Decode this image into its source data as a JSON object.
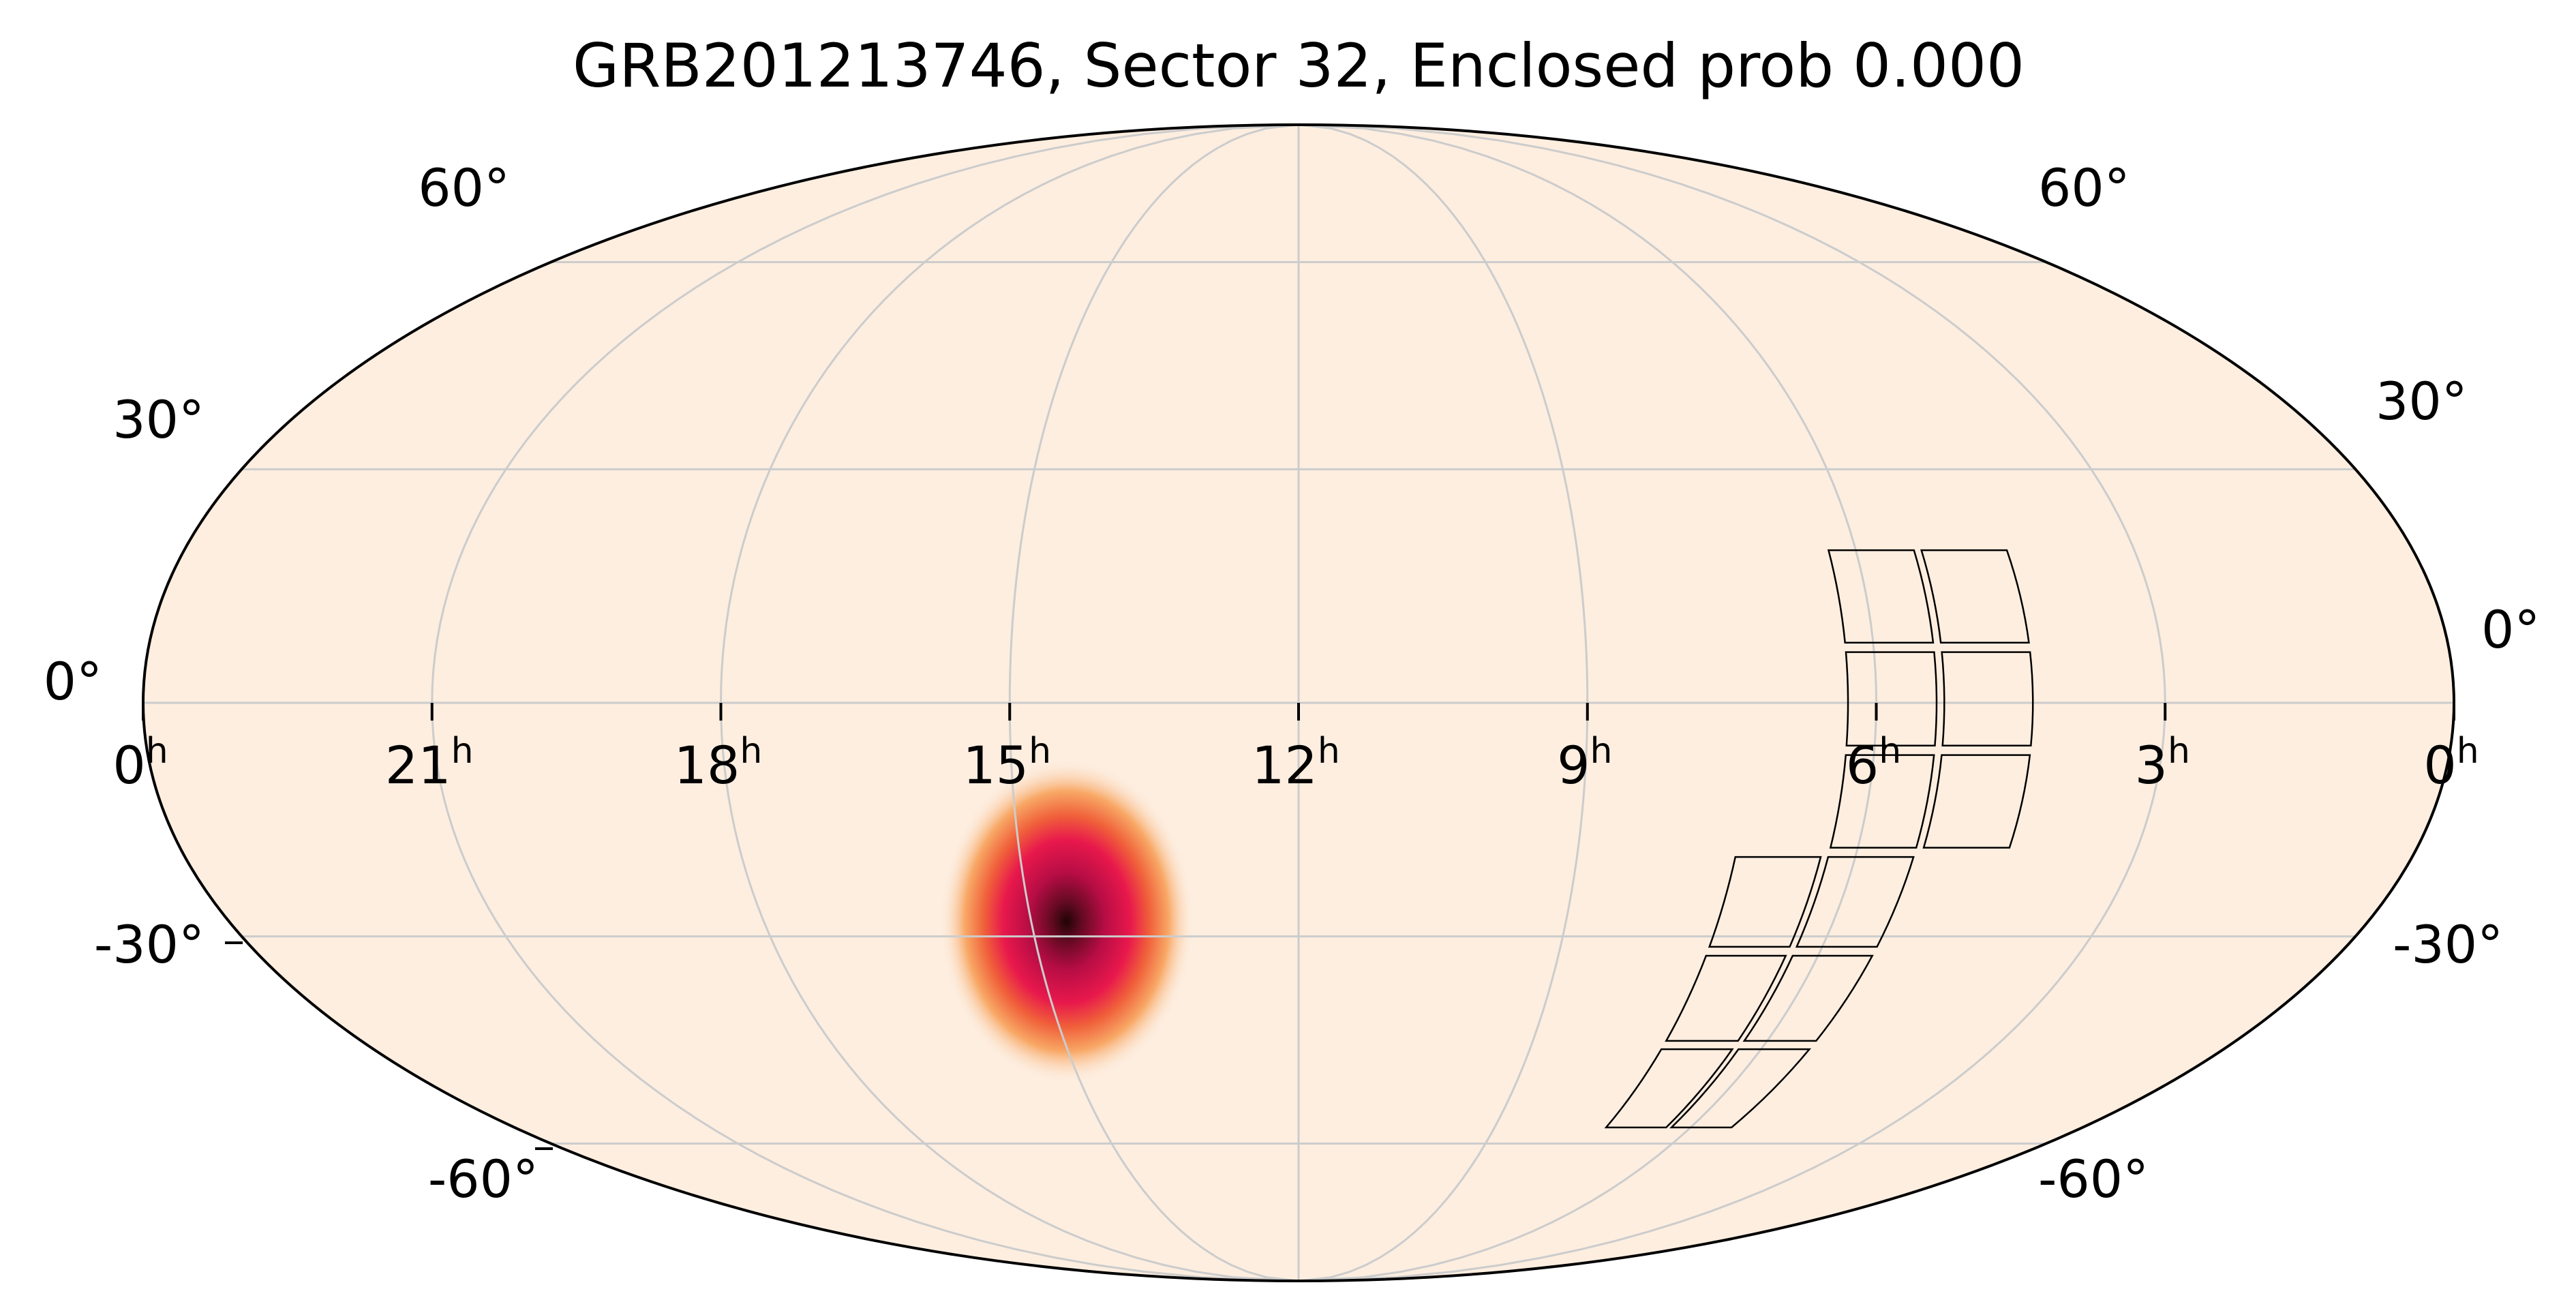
{
  "title": "GRB201213746, Sector 32, Enclosed prob 0.000",
  "projection": "mollweide",
  "colors": {
    "background": "#fdeee0",
    "grid": "#cccccc",
    "outline": "#000000",
    "footprint": "#000000",
    "heatmap": [
      "#fdeee0",
      "#fbb477",
      "#f58a4a",
      "#ee4530",
      "#d91852",
      "#a70a3e",
      "#640a22",
      "#200406"
    ]
  },
  "ra_ticks": [
    {
      "h": 0,
      "label": "0",
      "sup": "h"
    },
    {
      "h": 21,
      "label": "21",
      "sup": "h"
    },
    {
      "h": 18,
      "label": "18",
      "sup": "h"
    },
    {
      "h": 15,
      "label": "15",
      "sup": "h"
    },
    {
      "h": 12,
      "label": "12",
      "sup": "h"
    },
    {
      "h": 9,
      "label": "9",
      "sup": "h"
    },
    {
      "h": 6,
      "label": "6",
      "sup": "h"
    },
    {
      "h": 3,
      "label": "3",
      "sup": "h"
    },
    {
      "h": 0,
      "label": "0",
      "sup": "h",
      "right": true
    }
  ],
  "dec_ticks": [
    {
      "dec": 60,
      "label": "60°"
    },
    {
      "dec": 30,
      "label": "30°"
    },
    {
      "dec": 0,
      "label": "0°"
    },
    {
      "dec": -30,
      "label": "-30°"
    },
    {
      "dec": -60,
      "label": "-60°"
    }
  ],
  "grid": {
    "dec_lines": [
      -60,
      -30,
      0,
      30,
      60
    ],
    "ra_lines_h": [
      3,
      6,
      9,
      12,
      15,
      18,
      21
    ]
  },
  "chart_data": {
    "type": "heatmap",
    "probability_peak": {
      "ra_h": 14.6,
      "dec": -28.0,
      "sigma_ra_deg": 5.5,
      "sigma_dec_deg": 7.5
    },
    "footprint_camera_columns": [
      {
        "ra_deg": [
          65,
          80,
          95
        ],
        "dec_deg": [
          20,
          7,
          -6,
          -19
        ]
      },
      {
        "ra_deg": [
          80,
          95,
          110
        ],
        "dec_deg": [
          -19,
          -32,
          -45,
          -58
        ]
      }
    ]
  }
}
